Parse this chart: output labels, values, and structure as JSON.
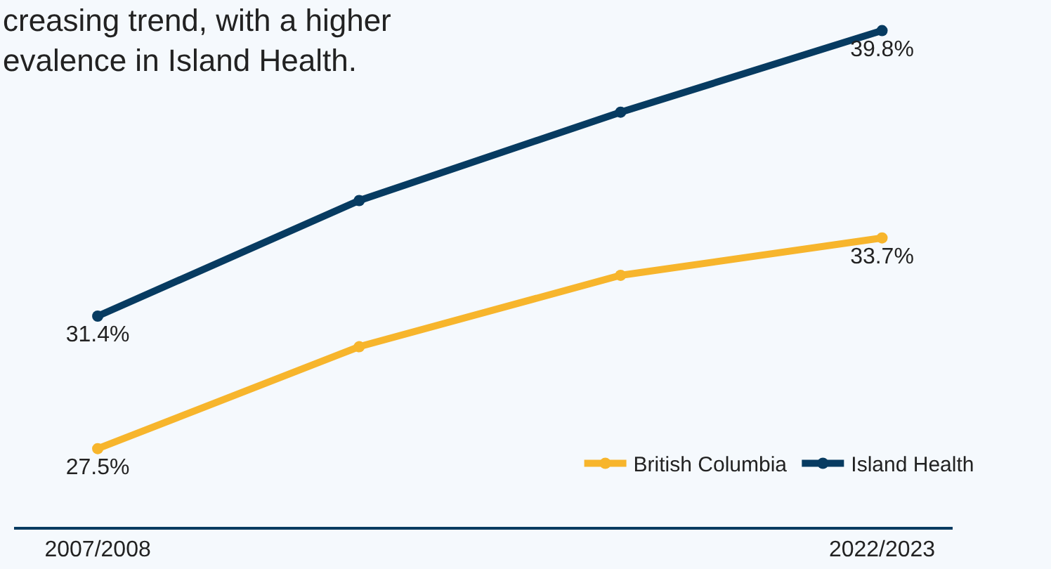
{
  "chart_data": {
    "type": "line",
    "title": "creasing trend, with a higher\nevalence in Island Health.",
    "categories": [
      "2007/2008",
      null,
      null,
      "2022/2023"
    ],
    "series": [
      {
        "name": "British Columbia",
        "color": "#f7b52c",
        "values": [
          27.5,
          30.5,
          32.6,
          33.7
        ],
        "value_labels": [
          "27.5%",
          null,
          null,
          "33.7%"
        ]
      },
      {
        "name": "Island Health",
        "color": "#073b61",
        "values": [
          31.4,
          34.8,
          37.4,
          39.8
        ],
        "value_labels": [
          "31.4%",
          null,
          null,
          "39.8%"
        ]
      }
    ],
    "ylim": [
      25.2,
      40.7
    ],
    "marker": "circle",
    "line_style": "solid",
    "grid": false,
    "legend": "bottom right",
    "tick_labels": "x"
  }
}
